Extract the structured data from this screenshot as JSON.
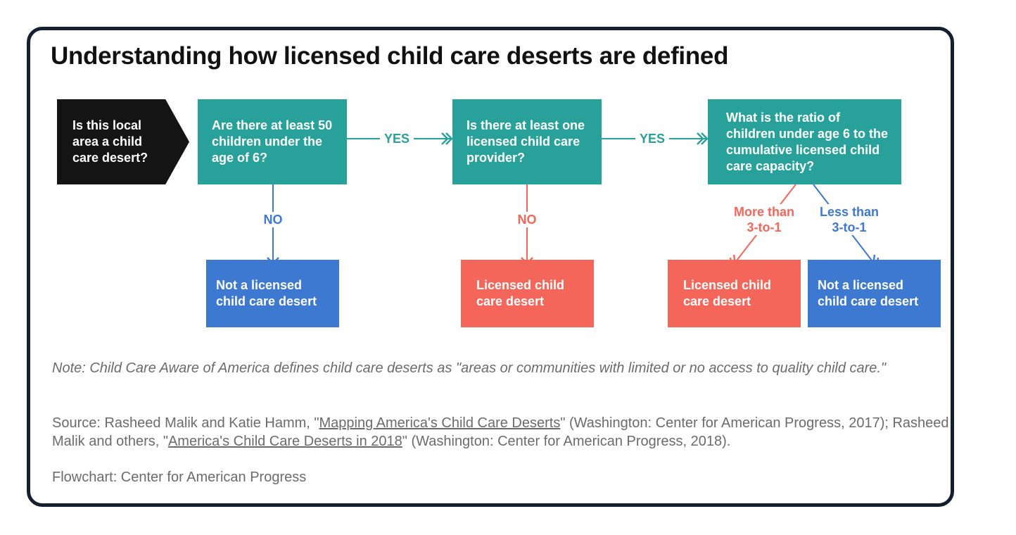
{
  "title": "Understanding how licensed child care deserts are defined",
  "nodes": {
    "start": "Is this local area a child care desert?",
    "q1": "Are there at least 50 children under the age of 6?",
    "q2": "Is there at least one licensed child care provider?",
    "q3": "What is the ratio of children under age 6 to the cumulative licensed child care capacity?",
    "o1": "Not a licensed child care desert",
    "o2": "Licensed child care desert",
    "o3": "Licensed child care desert",
    "o4": "Not a licensed child care desert"
  },
  "edges": {
    "q1_q2": "YES",
    "q2_q3": "YES",
    "q1_o1": "NO",
    "q2_o2": "NO",
    "q3_o3": "More than 3-to-1",
    "q3_o4": "Less than 3-to-1"
  },
  "footer": {
    "note": "Note: Child Care Aware of America defines child care deserts as \"areas or communities with limited or no access to quality child care.\"",
    "source_prefix": "Source: Rasheed Malik and Katie Hamm, \"",
    "source_link1": "Mapping America's Child Care Deserts",
    "source_mid": "\" (Washington: Center for American Progress, 2017); Rasheed Malik and others, \"",
    "source_link2": "America's Child Care Deserts in 2018",
    "source_suffix": "\" (Washington: Center for American Progress, 2018).",
    "credit": "Flowchart: Center for American Progress"
  },
  "colors": {
    "teal": "#27a199",
    "blue": "#3d78d1",
    "red": "#f5665a",
    "dark": "#141414",
    "border": "#142030"
  }
}
